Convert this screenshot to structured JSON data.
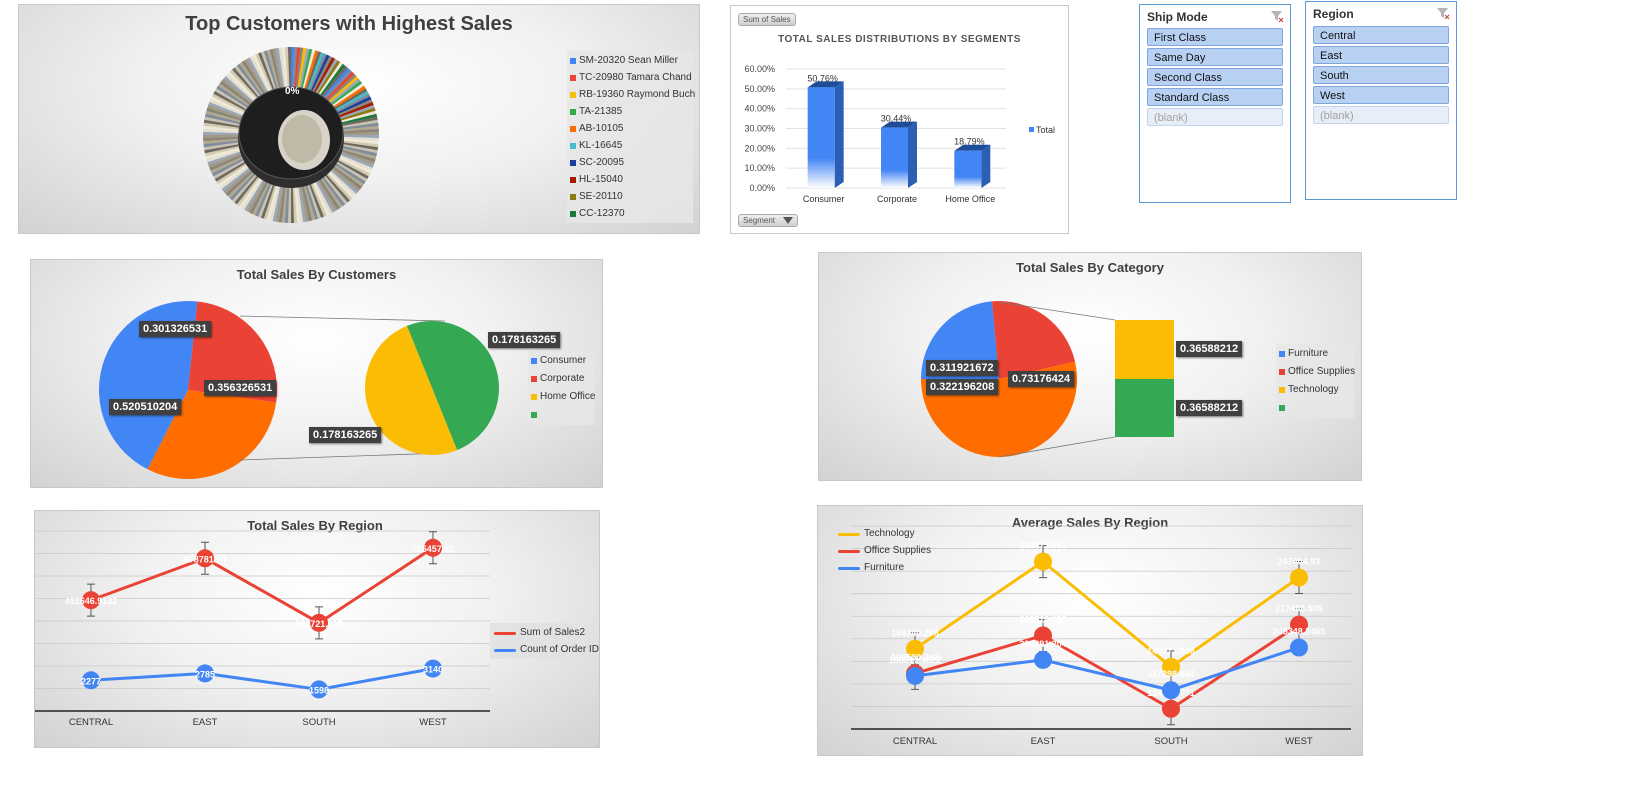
{
  "top_customers": {
    "title": "Top Customers with Highest Sales",
    "center_label": "0%",
    "legend": [
      {
        "label": "SM-20320 Sean Miller",
        "color": "#4285f4"
      },
      {
        "label": "TC-20980 Tamara Chand",
        "color": "#ea4335"
      },
      {
        "label": "RB-19360 Raymond Buch",
        "color": "#fbbc04"
      },
      {
        "label": "TA-21385",
        "color": "#34a853"
      },
      {
        "label": "AB-10105",
        "color": "#ff6d01"
      },
      {
        "label": "KL-16645",
        "color": "#46bdc6"
      },
      {
        "label": "SC-20095",
        "color": "#1a3f9c"
      },
      {
        "label": "HL-15040",
        "color": "#a61c00"
      },
      {
        "label": "SE-20110",
        "color": "#8c7b12"
      },
      {
        "label": "CC-12370",
        "color": "#1e7a3c"
      }
    ]
  },
  "segments": {
    "pivot_button": "Sum of Sales",
    "filter_button": "Segment",
    "chart_data": {
      "type": "bar",
      "title": "TOTAL SALES DISTRIBUTIONS BY SEGMENTS",
      "categories": [
        "Consumer",
        "Corporate",
        "Home Office"
      ],
      "series": [
        {
          "name": "Total",
          "values": [
            0.5076,
            0.3044,
            0.1879
          ]
        }
      ],
      "data_labels": [
        "50.76%",
        "30.44%",
        "18.79%"
      ],
      "y_ticks": [
        "0.00%",
        "10.00%",
        "20.00%",
        "30.00%",
        "40.00%",
        "50.00%",
        "60.00%"
      ],
      "ylim": [
        0,
        0.6
      ],
      "legend": "right",
      "color": "#4285f4"
    }
  },
  "ship_mode": {
    "title": "Ship Mode",
    "items": [
      "First Class",
      "Same Day",
      "Second Class",
      "Standard Class"
    ],
    "blank": "(blank)"
  },
  "region_slicer": {
    "title": "Region",
    "items": [
      "Central",
      "East",
      "South",
      "West"
    ],
    "blank": "(blank)"
  },
  "sales_by_customers": {
    "chart_data": {
      "type": "pie",
      "title": "Total Sales By Customers",
      "slices": [
        {
          "label": "0.520510204",
          "value": 0.520510204,
          "color": "#4285f4"
        },
        {
          "label": "0.301326531",
          "value": 0.301326531,
          "color": "#ea4335"
        },
        {
          "label": "0.356326531",
          "value": 0.356326531,
          "color": "#ff6d01"
        }
      ],
      "secondary_slices": [
        {
          "label": "0.178163265",
          "value": 0.178163265,
          "color": "#34a853"
        },
        {
          "label": "0.178163265",
          "value": 0.178163265,
          "color": "#fbbc04"
        }
      ],
      "legend": [
        {
          "label": "Consumer",
          "color": "#4285f4"
        },
        {
          "label": "Corporate",
          "color": "#ea4335"
        },
        {
          "label": "Home Office",
          "color": "#fbbc04"
        },
        {
          "label": "",
          "color": "#34a853"
        }
      ]
    }
  },
  "sales_by_category": {
    "chart_data": {
      "type": "pie",
      "title": "Total Sales By Category",
      "slices": [
        {
          "label": "0.322196208",
          "value": 0.322196208,
          "color": "#4285f4"
        },
        {
          "label": "0.311921672",
          "value": 0.311921672,
          "color": "#ea4335"
        },
        {
          "label": "0.73176424",
          "value": 0.73176424,
          "color": "#ff6d01"
        }
      ],
      "secondary_bars": [
        {
          "label": "0.36588212",
          "value": 0.36588212,
          "color": "#fbbc04"
        },
        {
          "label": "0.36588212",
          "value": 0.36588212,
          "color": "#34a853"
        }
      ],
      "legend": [
        {
          "label": "Furniture",
          "color": "#4285f4"
        },
        {
          "label": "Office Supplies",
          "color": "#ea4335"
        },
        {
          "label": "Technology",
          "color": "#fbbc04"
        },
        {
          "label": "",
          "color": "#34a853"
        }
      ]
    }
  },
  "sales_by_region": {
    "chart_data": {
      "type": "line",
      "title": "Total Sales By Region",
      "categories": [
        "CENTRAL",
        "EAST",
        "SOUTH",
        "WEST"
      ],
      "series": [
        {
          "name": "Sum of Sales2",
          "color": "#ea4335",
          "values": [
            492646.9132,
            678781.24,
            391721.905,
            725457.82
          ],
          "labels": [
            "492646.9132",
            "678781.24",
            "391721.905",
            "725457.82"
          ]
        },
        {
          "name": "Count of Order ID",
          "color": "#4285f4",
          "values": [
            2277,
            2785,
            1598,
            3140
          ],
          "labels": [
            "2277",
            "2785",
            "1598",
            "3140"
          ]
        }
      ],
      "ylim": [
        0,
        800000
      ],
      "legend": "right"
    }
  },
  "avg_by_region": {
    "chart_data": {
      "type": "line",
      "title": "Average Sales By Region",
      "categories": [
        "CENTRAL",
        "EAST",
        "SOUTH",
        "WEST"
      ],
      "series": [
        {
          "name": "Technology",
          "color": "#fbbc04",
          "values": [
            168740.208,
            264973.981,
            148771.908,
            247404.93
          ],
          "labels": [
            "168740.208",
            "264973.981",
            "148771.908",
            "247404.93"
          ]
        },
        {
          "name": "Office Supplies",
          "color": "#ea4335",
          "values": [
            163580.243,
            205516.055,
            124520.771,
            217466.509
          ],
          "labels": [
            "163580.243",
            "205516.055",
            "124520.771",
            "217466.509"
          ]
        },
        {
          "name": "Furniture",
          "color": "#4285f4",
          "values": [
            160317.4622,
            208291.204,
            117298.684,
            245348.2455
          ],
          "labels": [
            "160317.4622",
            "208291.204",
            "117298.684",
            "245348.2455"
          ]
        }
      ],
      "legend": "top-left"
    }
  }
}
